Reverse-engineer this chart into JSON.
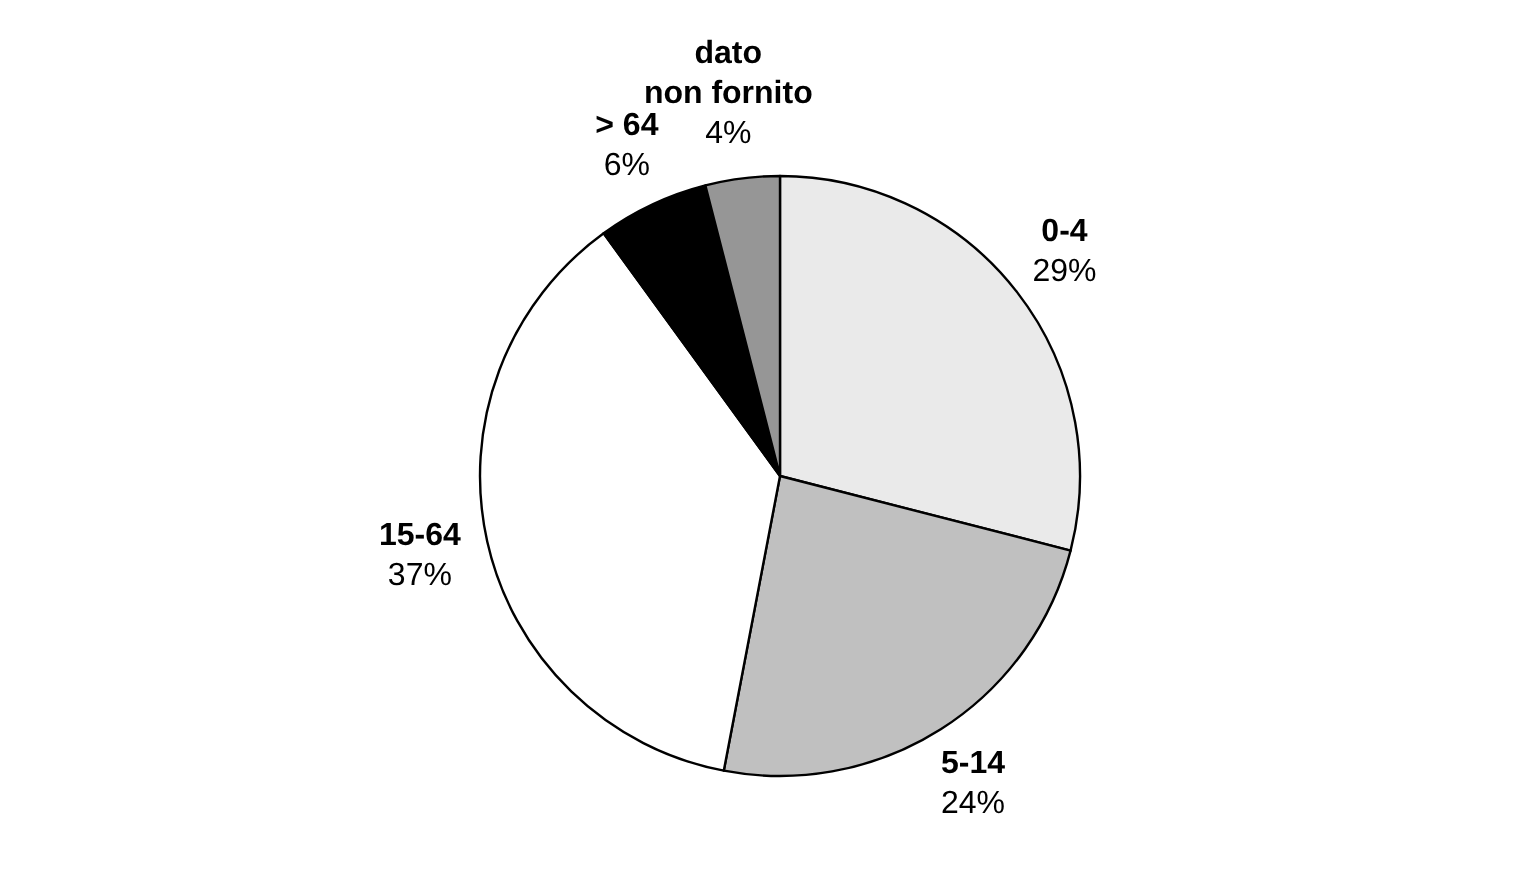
{
  "chart_data": {
    "type": "pie",
    "categories": [
      "0-4",
      "5-14",
      "15-64",
      "> 64",
      "dato non fornito"
    ],
    "values": [
      29,
      24,
      37,
      6,
      4
    ],
    "colors": [
      "#eaeaea",
      "#c0c0c0",
      "#ffffff",
      "#000000",
      "#969696"
    ],
    "value_labels": [
      "29%",
      "24%",
      "37%",
      "6%",
      "4%"
    ]
  }
}
